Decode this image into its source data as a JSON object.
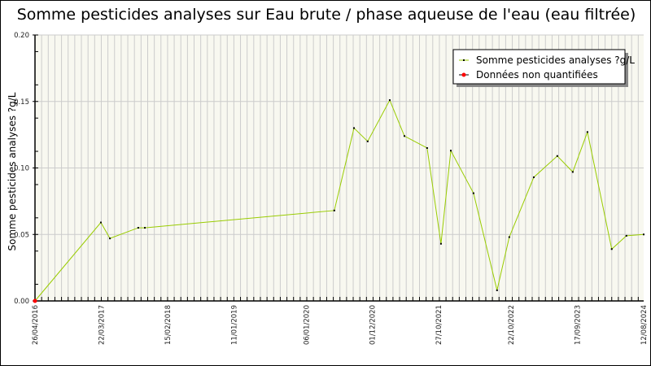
{
  "chart_data": {
    "type": "line",
    "title": "Somme pesticides analyses sur Eau brute / phase aqueuse de l'eau (eau filtrée)",
    "xlabel": "",
    "ylabel": "Somme pesticides analyses ?g/L",
    "xlim": [
      "26/04/2016",
      "12/08/2024"
    ],
    "ylim": [
      0,
      0.2
    ],
    "x_tick_labels": [
      "26/04/2016",
      "22/03/2017",
      "15/02/2018",
      "11/01/2019",
      "06/01/2020",
      "01/12/2020",
      "27/10/2021",
      "22/10/2022",
      "17/09/2023",
      "12/08/2024"
    ],
    "y_tick_labels": [
      "0.00",
      "0.05",
      "0.10",
      "0.15",
      "0.20"
    ],
    "y_ticks": [
      0,
      0.05,
      0.1,
      0.15,
      0.2
    ],
    "grid": true,
    "legend_position": "top-right",
    "colors": {
      "line": "#99cc00",
      "point": "#000000",
      "non_quantified": "#ff0000",
      "plot_bg": "#f8f8f0",
      "grid": "#cccccc"
    },
    "series": [
      {
        "name": "Somme pesticides analyses ?g/L",
        "points": [
          {
            "x": "26/04/2016",
            "y": 0.0,
            "quantified": false
          },
          {
            "x": "20/03/2017",
            "y": 0.059
          },
          {
            "x": "04/05/2017",
            "y": 0.047
          },
          {
            "x": "22/09/2017",
            "y": 0.055
          },
          {
            "x": "25/10/2017",
            "y": 0.055
          },
          {
            "x": "25/05/2020",
            "y": 0.068
          },
          {
            "x": "31/08/2020",
            "y": 0.13
          },
          {
            "x": "07/11/2020",
            "y": 0.12
          },
          {
            "x": "25/02/2021",
            "y": 0.151
          },
          {
            "x": "09/05/2021",
            "y": 0.124
          },
          {
            "x": "30/08/2021",
            "y": 0.115
          },
          {
            "x": "07/11/2021",
            "y": 0.043
          },
          {
            "x": "26/12/2021",
            "y": 0.113
          },
          {
            "x": "18/04/2022",
            "y": 0.081
          },
          {
            "x": "13/08/2022",
            "y": 0.008
          },
          {
            "x": "13/10/2022",
            "y": 0.048
          },
          {
            "x": "12/02/2023",
            "y": 0.093
          },
          {
            "x": "09/06/2023",
            "y": 0.109
          },
          {
            "x": "25/08/2023",
            "y": 0.097
          },
          {
            "x": "06/11/2023",
            "y": 0.127
          },
          {
            "x": "06/03/2024",
            "y": 0.039
          },
          {
            "x": "18/05/2024",
            "y": 0.049
          },
          {
            "x": "12/08/2024",
            "y": 0.05
          }
        ]
      }
    ],
    "legend": [
      "Somme pesticides analyses ?g/L",
      "Données non quantifiées"
    ]
  }
}
